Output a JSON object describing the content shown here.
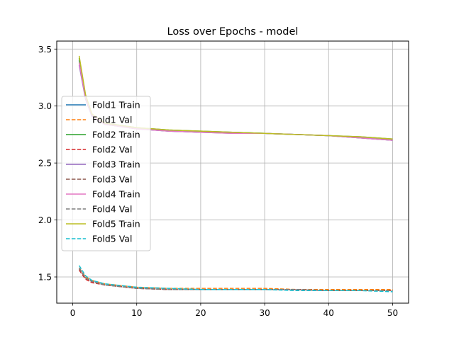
{
  "chart_data": {
    "type": "line",
    "title": "Loss over Epochs - model",
    "xlabel": "",
    "ylabel": "",
    "xlim": [
      -2.5,
      52.5
    ],
    "ylim": [
      1.27,
      3.57
    ],
    "xticks": [
      0,
      10,
      20,
      30,
      40,
      50
    ],
    "yticks": [
      1.5,
      2.0,
      2.5,
      3.0,
      3.5
    ],
    "grid": true,
    "legend_position": "center-left",
    "series": [
      {
        "name": "Fold1 Train",
        "style": "solid",
        "color": "#1f77b4",
        "x": [
          1,
          2,
          3,
          5,
          10,
          15,
          20,
          25,
          30,
          35,
          40,
          45,
          50
        ],
        "values": [
          3.4,
          3.08,
          2.92,
          2.84,
          2.8,
          2.78,
          2.77,
          2.77,
          2.76,
          2.75,
          2.74,
          2.72,
          2.7
        ]
      },
      {
        "name": "Fold1 Val",
        "style": "dashed",
        "color": "#ff7f0e",
        "x": [
          1,
          2,
          3,
          5,
          10,
          15,
          20,
          25,
          30,
          35,
          40,
          45,
          50
        ],
        "values": [
          1.58,
          1.5,
          1.47,
          1.44,
          1.41,
          1.4,
          1.4,
          1.4,
          1.4,
          1.39,
          1.39,
          1.39,
          1.39
        ]
      },
      {
        "name": "Fold2 Train",
        "style": "solid",
        "color": "#2ca02c",
        "x": [
          1,
          2,
          3,
          5,
          10,
          15,
          20,
          25,
          30,
          35,
          40,
          45,
          50
        ],
        "values": [
          3.42,
          3.09,
          2.93,
          2.85,
          2.81,
          2.79,
          2.78,
          2.77,
          2.76,
          2.75,
          2.74,
          2.73,
          2.71
        ]
      },
      {
        "name": "Fold2 Val",
        "style": "dashed",
        "color": "#d62728",
        "x": [
          1,
          2,
          3,
          5,
          10,
          15,
          20,
          25,
          30,
          35,
          40,
          45,
          50
        ],
        "values": [
          1.56,
          1.48,
          1.45,
          1.43,
          1.4,
          1.39,
          1.39,
          1.39,
          1.39,
          1.39,
          1.38,
          1.38,
          1.38
        ]
      },
      {
        "name": "Fold3 Train",
        "style": "solid",
        "color": "#9467bd",
        "x": [
          1,
          2,
          3,
          5,
          10,
          15,
          20,
          25,
          30,
          35,
          40,
          45,
          50
        ],
        "values": [
          3.36,
          3.06,
          2.91,
          2.84,
          2.8,
          2.78,
          2.77,
          2.76,
          2.76,
          2.75,
          2.74,
          2.72,
          2.7
        ]
      },
      {
        "name": "Fold3 Val",
        "style": "dashed",
        "color": "#8c564b",
        "x": [
          1,
          2,
          3,
          5,
          10,
          15,
          20,
          25,
          30,
          35,
          40,
          45,
          50
        ],
        "values": [
          1.57,
          1.49,
          1.46,
          1.43,
          1.4,
          1.39,
          1.39,
          1.39,
          1.39,
          1.39,
          1.38,
          1.38,
          1.38
        ]
      },
      {
        "name": "Fold4 Train",
        "style": "solid",
        "color": "#e377c2",
        "x": [
          1,
          2,
          3,
          5,
          10,
          15,
          20,
          25,
          30,
          35,
          40,
          45,
          50
        ],
        "values": [
          3.38,
          3.07,
          2.92,
          2.84,
          2.8,
          2.78,
          2.77,
          2.76,
          2.76,
          2.75,
          2.74,
          2.72,
          2.7
        ]
      },
      {
        "name": "Fold4 Val",
        "style": "dashed",
        "color": "#7f7f7f",
        "x": [
          1,
          2,
          3,
          5,
          10,
          15,
          20,
          25,
          30,
          35,
          40,
          45,
          50
        ],
        "values": [
          1.58,
          1.49,
          1.46,
          1.43,
          1.4,
          1.39,
          1.39,
          1.39,
          1.39,
          1.39,
          1.38,
          1.38,
          1.38
        ]
      },
      {
        "name": "Fold5 Train",
        "style": "solid",
        "color": "#bcbd22",
        "x": [
          1,
          2,
          3,
          5,
          10,
          15,
          20,
          25,
          30,
          35,
          40,
          45,
          50
        ],
        "values": [
          3.44,
          3.1,
          2.93,
          2.85,
          2.81,
          2.79,
          2.78,
          2.77,
          2.76,
          2.75,
          2.74,
          2.73,
          2.71
        ]
      },
      {
        "name": "Fold5 Val",
        "style": "dashed",
        "color": "#17becf",
        "x": [
          1,
          2,
          3,
          5,
          10,
          15,
          20,
          25,
          30,
          35,
          40,
          45,
          50
        ],
        "values": [
          1.6,
          1.51,
          1.47,
          1.44,
          1.41,
          1.4,
          1.39,
          1.39,
          1.39,
          1.38,
          1.38,
          1.38,
          1.37
        ]
      }
    ]
  }
}
